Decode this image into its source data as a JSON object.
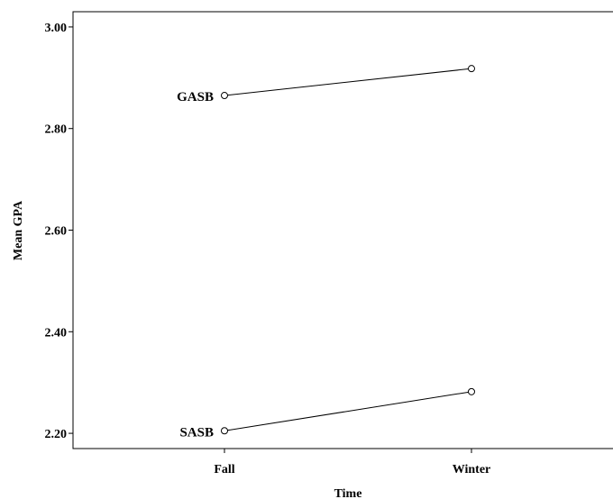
{
  "chart_data": {
    "type": "line",
    "title": "",
    "xlabel": "Time",
    "ylabel": "Mean GPA",
    "categories": [
      "Fall",
      "Winter"
    ],
    "ylim": [
      2.17,
      3.03
    ],
    "yticks": [
      "2.20",
      "2.40",
      "2.60",
      "2.80",
      "3.00"
    ],
    "grid": false,
    "legend": "none",
    "series": [
      {
        "name": "GASB",
        "values": [
          2.865,
          2.918
        ]
      },
      {
        "name": "SASB",
        "values": [
          2.205,
          2.282
        ]
      }
    ],
    "colors": {
      "line": "#000000",
      "marker_fill": "#ffffff",
      "frame": "#000000"
    }
  }
}
